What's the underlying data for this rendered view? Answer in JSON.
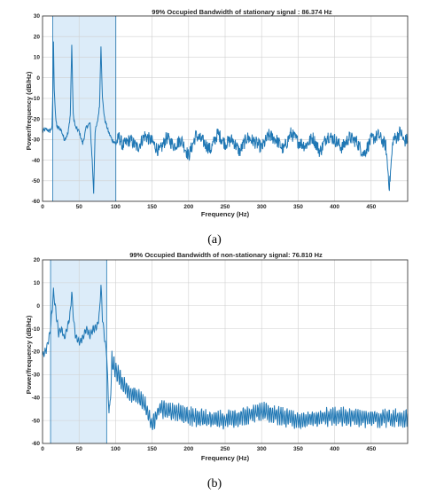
{
  "chart_data": [
    {
      "type": "line",
      "panel_label": "(a)",
      "title": "99% Occupied Bandwidth of stationary signal : 86.374 Hz",
      "xlabel": "Frequency (Hz)",
      "ylabel": "Power/frequency (dB/Hz)",
      "xlim": [
        0,
        500
      ],
      "ylim": [
        -60,
        30
      ],
      "xticks": [
        0,
        50,
        100,
        150,
        200,
        250,
        300,
        350,
        400,
        450
      ],
      "yticks": [
        -60,
        -50,
        -40,
        -30,
        -20,
        -10,
        0,
        10,
        20,
        30
      ],
      "grid": true,
      "line_color": "#1f77b4",
      "band_fill": "#d6e9f8",
      "occupied_band": [
        14,
        100.4
      ],
      "x": [
        0,
        5,
        10,
        13,
        14,
        15,
        16,
        18,
        20,
        25,
        30,
        35,
        38,
        40,
        42,
        45,
        50,
        55,
        60,
        65,
        68,
        70,
        72,
        75,
        78,
        80,
        82,
        85,
        90,
        95,
        100,
        105,
        110,
        120,
        130,
        140,
        150,
        160,
        170,
        180,
        190,
        200,
        210,
        220,
        230,
        240,
        250,
        260,
        270,
        280,
        290,
        300,
        310,
        320,
        330,
        340,
        350,
        360,
        370,
        380,
        390,
        400,
        410,
        420,
        430,
        440,
        450,
        460,
        470,
        475,
        480,
        485,
        490,
        495,
        499
      ],
      "y": [
        -26,
        -25,
        -26,
        -24,
        -8,
        17,
        -5,
        -20,
        -24,
        -25,
        -30,
        -27,
        -18,
        16,
        -18,
        -24,
        -26,
        -32,
        -24,
        -22,
        -40,
        -56,
        -26,
        -22,
        -14,
        16,
        -10,
        -20,
        -26,
        -30,
        -32,
        -29,
        -33,
        -30,
        -34,
        -28,
        -31,
        -36,
        -29,
        -33,
        -30,
        -38,
        -28,
        -31,
        -35,
        -27,
        -32,
        -30,
        -36,
        -29,
        -31,
        -34,
        -28,
        -30,
        -35,
        -27,
        -31,
        -33,
        -29,
        -36,
        -28,
        -30,
        -34,
        -29,
        -31,
        -37,
        -30,
        -28,
        -33,
        -53,
        -30,
        -29,
        -26,
        -31,
        -30
      ]
    },
    {
      "type": "line",
      "panel_label": "(b)",
      "title": "99% Occupied Bandwidth of non-stationary signal: 76.810 Hz",
      "xlabel": "Frequency (Hz)",
      "ylabel": "Power/frequency (dB/Hz)",
      "xlim": [
        0,
        500
      ],
      "ylim": [
        -60,
        20
      ],
      "xticks": [
        0,
        50,
        100,
        150,
        200,
        250,
        300,
        350,
        400,
        450
      ],
      "yticks": [
        -60,
        -50,
        -40,
        -30,
        -20,
        -10,
        0,
        10,
        20
      ],
      "grid": true,
      "line_color": "#1f77b4",
      "band_fill": "#d6e9f8",
      "occupied_band": [
        11,
        87.8
      ],
      "x": [
        0,
        5,
        10,
        12,
        15,
        18,
        22,
        26,
        30,
        35,
        38,
        40,
        42,
        45,
        50,
        55,
        60,
        65,
        70,
        75,
        78,
        80,
        82,
        85,
        88,
        90,
        92,
        95,
        100,
        110,
        120,
        130,
        140,
        150,
        160,
        180,
        200,
        220,
        250,
        300,
        350,
        400,
        450,
        499
      ],
      "y": [
        -22,
        -19,
        -12,
        -6,
        6,
        -2,
        -12,
        -10,
        -14,
        -8,
        -3,
        6,
        -4,
        -13,
        -16,
        -14,
        -10,
        -13,
        -10,
        -9,
        -3,
        9,
        -5,
        -14,
        -22,
        -40,
        -47,
        -24,
        -28,
        -34,
        -38,
        -40,
        -43,
        -52,
        -45,
        -46,
        -48,
        -49,
        -50,
        -46,
        -50,
        -48,
        -49,
        -49
      ]
    }
  ]
}
